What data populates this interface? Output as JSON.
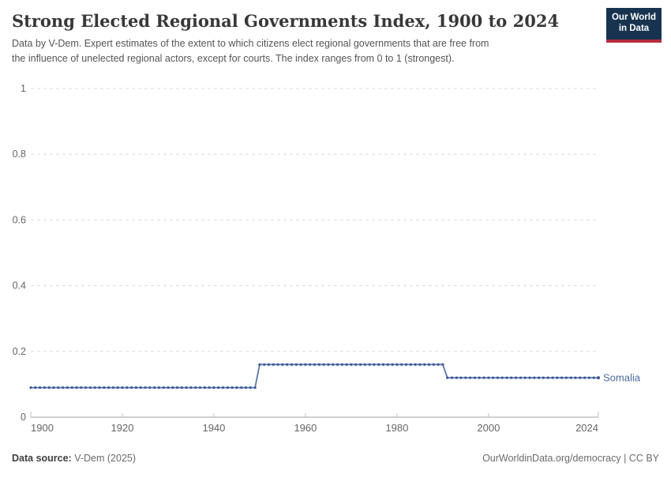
{
  "header": {
    "title": "Strong Elected Regional Governments Index, 1900 to 2024",
    "subtitle_line1": "Data by V-Dem. Expert estimates of the extent to which citizens elect regional governments that are free from",
    "subtitle_line2": "the influence of unelected regional actors, except for courts. The index ranges from 0 to 1 (strongest).",
    "logo": {
      "line1": "Our World",
      "line2": "in Data",
      "bg_color": "#18334f",
      "accent_color": "#b62e40"
    }
  },
  "chart_data": {
    "type": "line",
    "title": "Strong Elected Regional Governments Index, 1900 to 2024",
    "xlabel": "",
    "ylabel": "",
    "x": {
      "min": 1900,
      "max": 2024,
      "ticks": [
        1900,
        1920,
        1940,
        1960,
        1980,
        2000,
        2024
      ]
    },
    "y": {
      "min": 0,
      "max": 1,
      "ticks": [
        0,
        0.2,
        0.4,
        0.6,
        0.8,
        1
      ]
    },
    "grid": "dashed-horizontal",
    "legend_position": "end-of-line-label",
    "series": [
      {
        "name": "Somalia",
        "line_color": "#5d78ac",
        "dot_color": "#3a5795",
        "label_color": "#4c6a9c",
        "segments": [
          {
            "from": 1900,
            "to": 1949,
            "value": 0.09
          },
          {
            "from": 1950,
            "to": 1990,
            "value": 0.16
          },
          {
            "from": 1991,
            "to": 2024,
            "value": 0.12
          }
        ]
      }
    ],
    "axis_colors": {
      "gridline": "#dcdcdc",
      "axis_line": "#a3a3a3",
      "tick_mark": "#c2c2c2",
      "tick_label": "#666666"
    }
  },
  "footer": {
    "source_label": "Data source:",
    "source_value": " V-Dem (2025)",
    "credit": "OurWorldinData.org/democracy | CC BY"
  }
}
